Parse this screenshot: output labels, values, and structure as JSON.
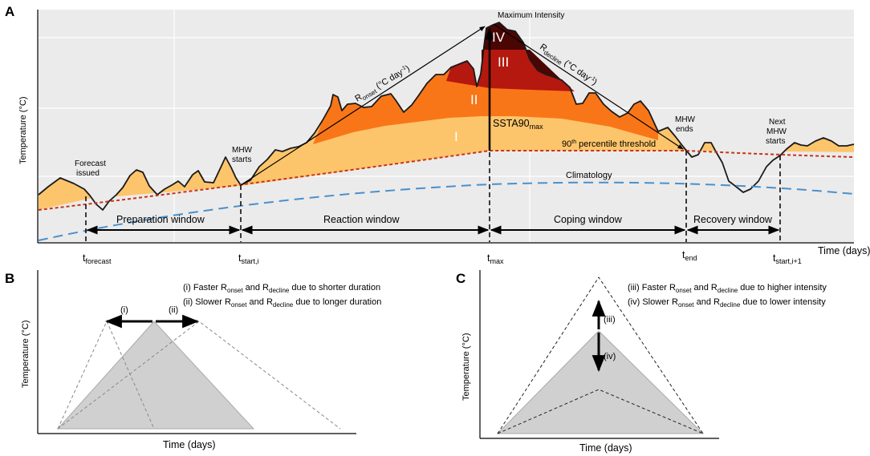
{
  "panelA": {
    "letter": "A",
    "y_axis_label": "Temperature (°C)",
    "x_axis_label": "Time (days)",
    "max_intensity": "Maximum Intensity",
    "categories": {
      "i": "I",
      "ii": "II",
      "iii": "III",
      "iv": "IV"
    },
    "r_onset": {
      "r": "R",
      "sub": "onset",
      "unit_pre": " (°C day",
      "exp": "-1",
      "unit_post": ")"
    },
    "r_decline": {
      "r": "R",
      "sub": "decline",
      "unit_pre": " (°C day",
      "exp": "-1",
      "unit_post": ")"
    },
    "ssta": {
      "main": "SSTA90",
      "sub": "max"
    },
    "threshold": {
      "pre": "90",
      "sup": "th",
      "post": " percentile threshold"
    },
    "climatology": "Climatology",
    "forecast_issued": [
      "Forecast",
      "issued"
    ],
    "mhw_starts": [
      "MHW",
      "starts"
    ],
    "mhw_ends": [
      "MHW",
      "ends"
    ],
    "next_mhw_starts": [
      "Next",
      "MHW",
      "starts"
    ],
    "windows": {
      "preparation": "Preparation window",
      "reaction": "Reaction window",
      "coping": "Coping window",
      "recovery": "Recovery window"
    },
    "ticks": {
      "forecast": {
        "t": "t",
        "sub": "forecast"
      },
      "start_i": {
        "t": "t",
        "sub": "start,i"
      },
      "max": {
        "t": "t",
        "sub": "max"
      },
      "end": {
        "t": "t",
        "sub": "end"
      },
      "start_i1": {
        "t": "t",
        "sub": "start,i+1"
      }
    }
  },
  "panelB": {
    "letter": "B",
    "y_axis_label": "Temperature (°C)",
    "x_axis_label": "Time (days)",
    "arrow_i": "(i)",
    "arrow_ii": "(ii)",
    "legend_i": {
      "p1": "(i)  Faster R",
      "s1": "onset",
      "p2": " and R",
      "s2": "decline",
      "p3": " due to shorter duration"
    },
    "legend_ii": {
      "p1": "(ii) Slower R",
      "s1": "onset",
      "p2": " and R",
      "s2": "decline",
      "p3": " due to longer duration"
    }
  },
  "panelC": {
    "letter": "C",
    "y_axis_label": "Temperature (°C)",
    "x_axis_label": "Time (days)",
    "arrow_iii": "(iii)",
    "arrow_iv": "(iv)",
    "legend_iii": {
      "p1": "(iii) Faster R",
      "s1": "onset",
      "p2": " and R",
      "s2": "decline",
      "p3": " due to higher intensity"
    },
    "legend_iv": {
      "p1": "(iv) Slower R",
      "s1": "onset",
      "p2": " and R",
      "s2": "decline",
      "p3": " due to lower intensity"
    }
  },
  "colors": {
    "plot_bg": "#ebebeb",
    "cat_i": "#fdc56b",
    "cat_ii": "#f97618",
    "cat_iii": "#b4180e",
    "cat_iv": "#4a0603",
    "threshold": "#c8331b",
    "climatology": "#4a90cc",
    "gray_fill": "#d0d0d0"
  }
}
